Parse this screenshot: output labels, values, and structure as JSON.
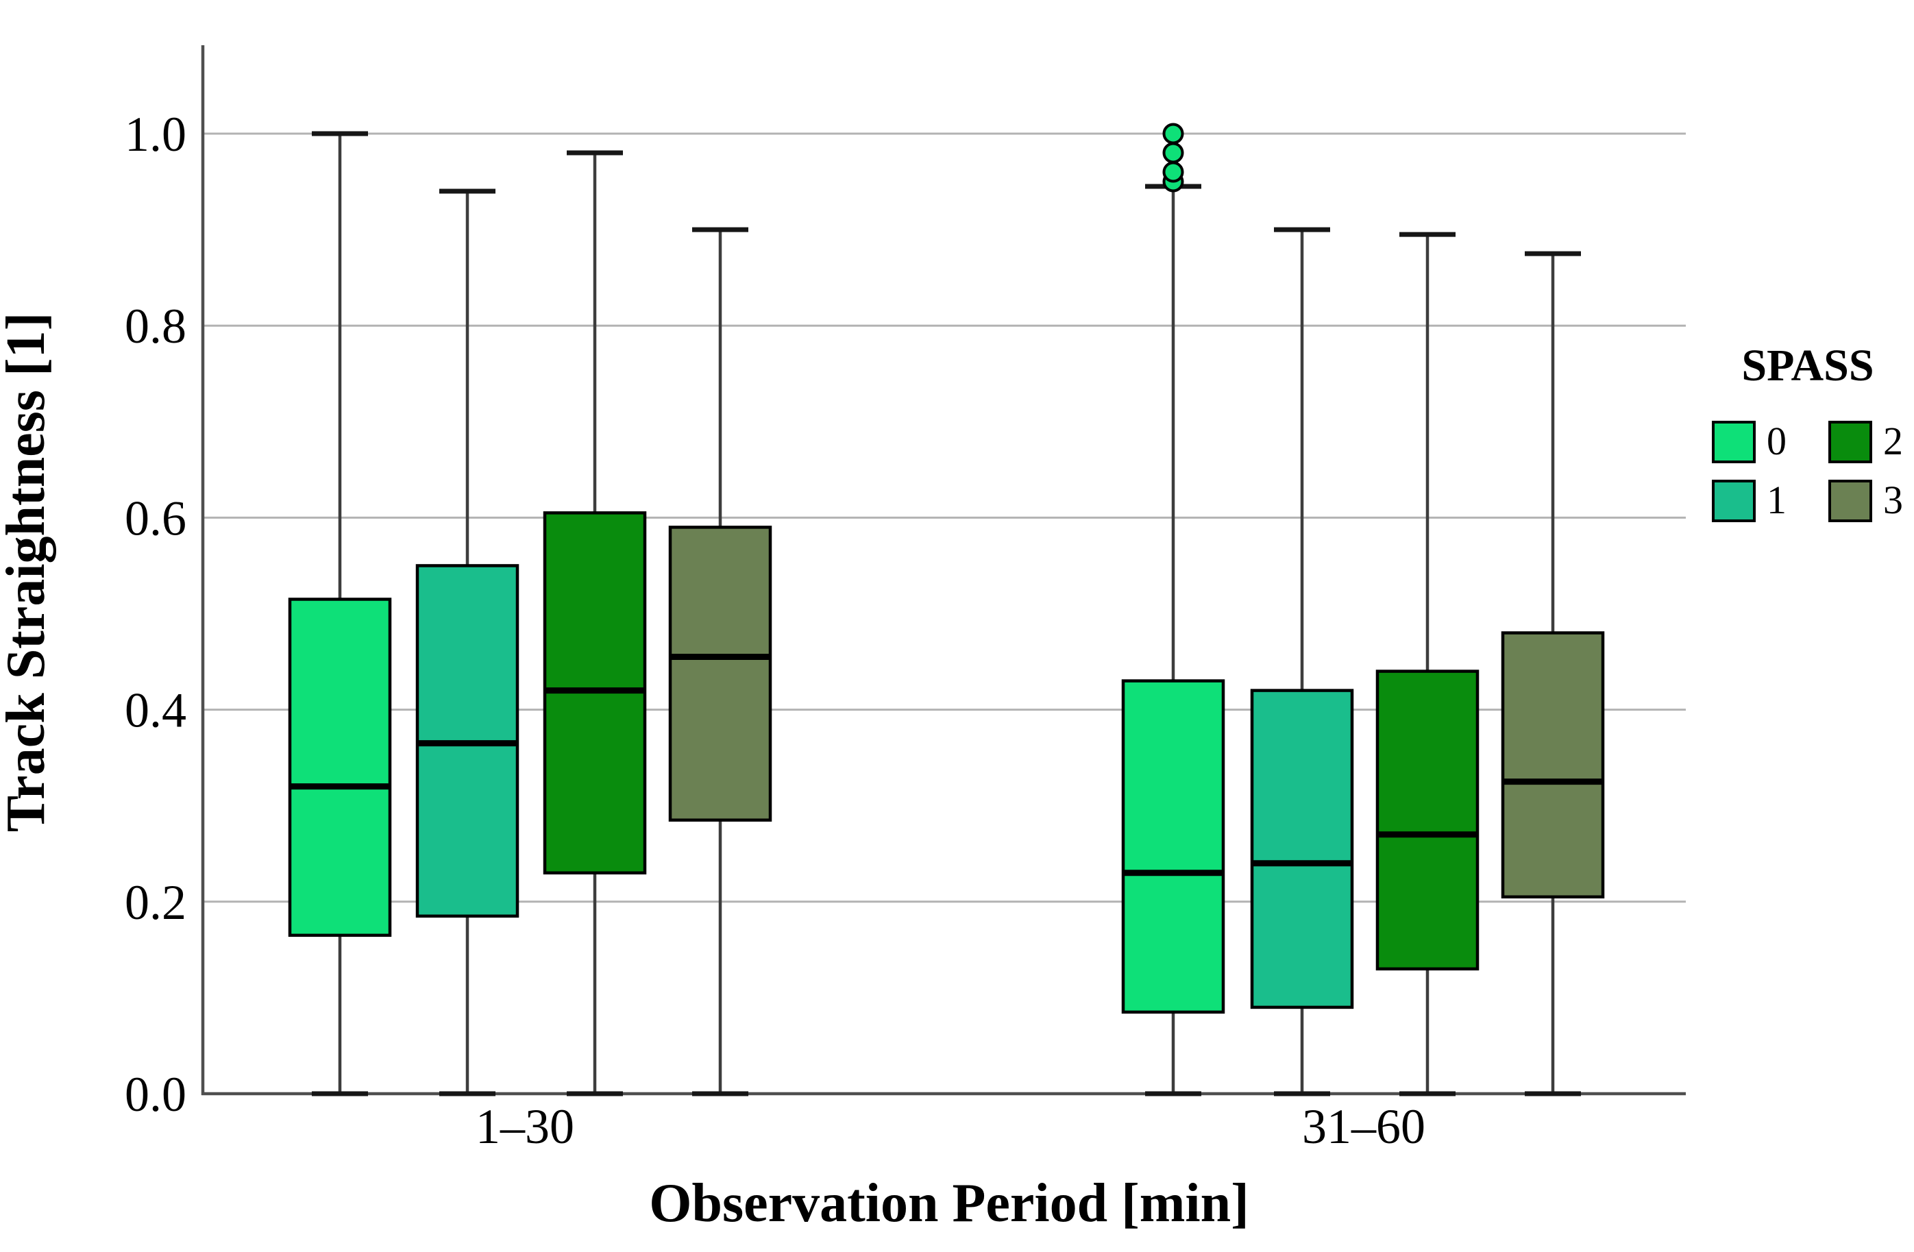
{
  "chart_data": {
    "type": "boxplot",
    "title": "",
    "xlabel": "Observation Period [min]",
    "ylabel": "Track Straightness [1]",
    "categories": [
      "1–30",
      "31–60"
    ],
    "ytick_labels": [
      "0.0",
      "0.2",
      "0.4",
      "0.6",
      "0.8",
      "1.0"
    ],
    "ytick_values": [
      0.0,
      0.2,
      0.4,
      0.6,
      0.8,
      1.0
    ],
    "ylim": [
      0.0,
      1.09
    ],
    "grid": true,
    "colors": {
      "grid": "#b3b3b3",
      "axis": "#4f4f4f",
      "whisker": "#3d3d3d",
      "whisker_cap": "#161616",
      "box_stroke": "#000000",
      "median": "#000000"
    },
    "legend": {
      "title": "SPASS",
      "position": "right",
      "entries": [
        {
          "label": "0",
          "color": "#0ee078"
        },
        {
          "label": "1",
          "color": "#1abe8c"
        },
        {
          "label": "2",
          "color": "#098c0d"
        },
        {
          "label": "3",
          "color": "#6b8153"
        }
      ]
    },
    "series": [
      {
        "name": "0",
        "color": "#0ee078",
        "boxes": [
          {
            "category": "1–30",
            "whisker_low": 0.0,
            "q1": 0.165,
            "median": 0.32,
            "q3": 0.515,
            "whisker_high": 1.0,
            "outliers": []
          },
          {
            "category": "31–60",
            "whisker_low": 0.0,
            "q1": 0.085,
            "median": 0.23,
            "q3": 0.43,
            "whisker_high": 0.945,
            "outliers": [
              0.95,
              0.96,
              0.98,
              1.0
            ]
          }
        ]
      },
      {
        "name": "1",
        "color": "#1abe8c",
        "boxes": [
          {
            "category": "1–30",
            "whisker_low": 0.0,
            "q1": 0.185,
            "median": 0.365,
            "q3": 0.55,
            "whisker_high": 0.94,
            "outliers": []
          },
          {
            "category": "31–60",
            "whisker_low": 0.0,
            "q1": 0.09,
            "median": 0.24,
            "q3": 0.42,
            "whisker_high": 0.9,
            "outliers": []
          }
        ]
      },
      {
        "name": "2",
        "color": "#098c0d",
        "boxes": [
          {
            "category": "1–30",
            "whisker_low": 0.0,
            "q1": 0.23,
            "median": 0.42,
            "q3": 0.605,
            "whisker_high": 0.98,
            "outliers": []
          },
          {
            "category": "31–60",
            "whisker_low": 0.0,
            "q1": 0.13,
            "median": 0.27,
            "q3": 0.44,
            "whisker_high": 0.895,
            "outliers": []
          }
        ]
      },
      {
        "name": "3",
        "color": "#6b8153",
        "boxes": [
          {
            "category": "1–30",
            "whisker_low": 0.0,
            "q1": 0.285,
            "median": 0.455,
            "q3": 0.59,
            "whisker_high": 0.9,
            "outliers": []
          },
          {
            "category": "31–60",
            "whisker_low": 0.0,
            "q1": 0.205,
            "median": 0.325,
            "q3": 0.48,
            "whisker_high": 0.875,
            "outliers": []
          }
        ]
      }
    ]
  }
}
